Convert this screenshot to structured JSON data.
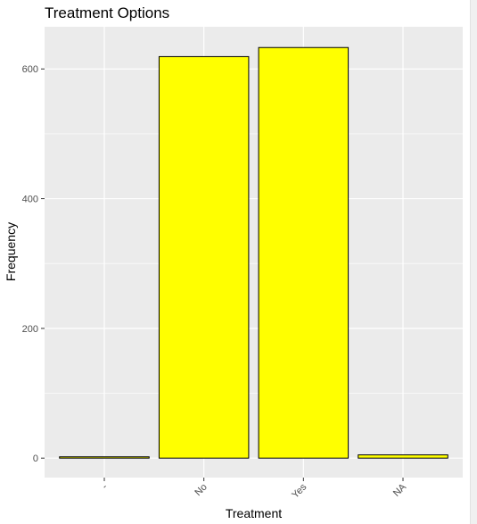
{
  "chart_data": {
    "type": "bar",
    "title": "Treatment Options",
    "xlabel": "Treatment",
    "ylabel": "Frequency",
    "categories": [
      "-",
      "No",
      "Yes",
      "NA"
    ],
    "values": [
      2,
      619,
      633,
      5
    ],
    "ylim": [
      -30,
      665
    ],
    "yticks": [
      0,
      200,
      400,
      600
    ],
    "grid": true,
    "bar_fill": "#ffff00",
    "bar_stroke": "#000000",
    "panel_background": "#ebebeb",
    "gridline_color": "#ffffff"
  }
}
